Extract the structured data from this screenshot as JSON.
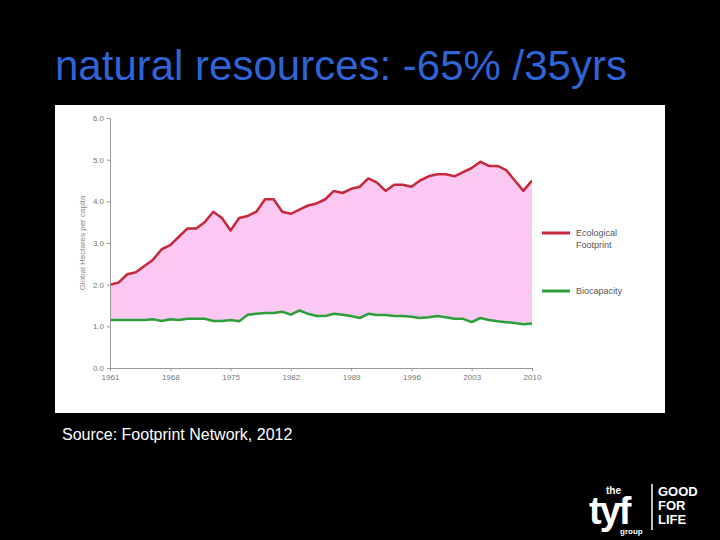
{
  "chart_data": {
    "type": "line",
    "title": "natural resources: -65% /35yrs",
    "y_label": "Global Hectares per capita",
    "x": [
      1961,
      1962,
      1963,
      1964,
      1965,
      1966,
      1967,
      1968,
      1969,
      1970,
      1971,
      1972,
      1973,
      1974,
      1975,
      1976,
      1977,
      1978,
      1979,
      1980,
      1981,
      1982,
      1983,
      1984,
      1985,
      1986,
      1987,
      1988,
      1989,
      1990,
      1991,
      1992,
      1993,
      1994,
      1995,
      1996,
      1997,
      1998,
      1999,
      2000,
      2001,
      2002,
      2003,
      2004,
      2005,
      2006,
      2007,
      2008,
      2009,
      2010
    ],
    "series": [
      {
        "name": "Ecological Footprint",
        "color": "#c8283c",
        "values": [
          2.0,
          2.05,
          2.25,
          2.3,
          2.45,
          2.6,
          2.85,
          2.95,
          3.15,
          3.35,
          3.35,
          3.5,
          3.75,
          3.6,
          3.3,
          3.6,
          3.65,
          3.75,
          4.05,
          4.05,
          3.75,
          3.7,
          3.8,
          3.9,
          3.95,
          4.05,
          4.25,
          4.2,
          4.3,
          4.35,
          4.55,
          4.45,
          4.25,
          4.4,
          4.4,
          4.35,
          4.5,
          4.6,
          4.65,
          4.65,
          4.6,
          4.7,
          4.8,
          4.95,
          4.85,
          4.85,
          4.75,
          4.5,
          4.25,
          4.5
        ]
      },
      {
        "name": "Biocapacity",
        "color": "#2e9e3a",
        "values": [
          1.15,
          1.15,
          1.15,
          1.15,
          1.15,
          1.17,
          1.13,
          1.17,
          1.15,
          1.18,
          1.18,
          1.18,
          1.13,
          1.13,
          1.15,
          1.12,
          1.28,
          1.3,
          1.32,
          1.32,
          1.35,
          1.28,
          1.38,
          1.3,
          1.25,
          1.25,
          1.3,
          1.28,
          1.25,
          1.2,
          1.3,
          1.27,
          1.27,
          1.25,
          1.25,
          1.23,
          1.2,
          1.22,
          1.25,
          1.22,
          1.18,
          1.18,
          1.1,
          1.2,
          1.15,
          1.12,
          1.1,
          1.08,
          1.05,
          1.07
        ]
      }
    ],
    "xlim": [
      1961,
      2010
    ],
    "xticks": [
      1961,
      1968,
      1975,
      1982,
      1989,
      1996,
      2003,
      2010
    ],
    "ylim": [
      0,
      6
    ],
    "yticks": [
      {
        "value": 0,
        "label": "0.0"
      },
      {
        "value": 1,
        "label": "1.0"
      },
      {
        "value": 2,
        "label": "2.0"
      },
      {
        "value": 3,
        "label": "3.0"
      },
      {
        "value": 4,
        "label": "4.0"
      },
      {
        "value": 5,
        "label": "5.0"
      },
      {
        "value": 6,
        "label": "6.0"
      }
    ],
    "grid": false,
    "legend": "right"
  },
  "source": "Source: Footprint Network, 2012",
  "logo": {
    "small": "the",
    "brand": "tyf",
    "sub": "group",
    "tagline": [
      "GOOD",
      "FOR",
      "LIFE"
    ]
  }
}
